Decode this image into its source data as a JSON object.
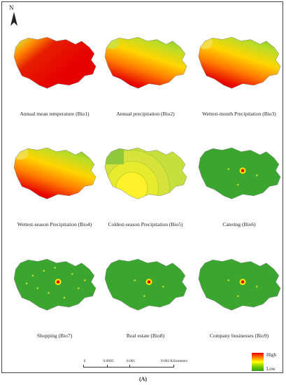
{
  "north_label": "N",
  "panels": [
    {
      "caption": "Annual mean temperature (Bio1)",
      "pattern": "temperature"
    },
    {
      "caption": "Annual precipitation (Bio2)",
      "pattern": "precip"
    },
    {
      "caption": "Wettest-month Precipitation (Bio3)",
      "pattern": "precip3"
    },
    {
      "caption": "Wettest-season Precipitation (Bio4)",
      "pattern": "precip4"
    },
    {
      "caption": "Coldest-season Precipitation (Bio5)",
      "pattern": "coldseason"
    },
    {
      "caption": "Catering (Bio6)",
      "pattern": "poi"
    },
    {
      "caption": "Shopping (Bio7)",
      "pattern": "poi-dense"
    },
    {
      "caption": "Real estate (Bio8)",
      "pattern": "poi"
    },
    {
      "caption": "Company businesses (Bio9)",
      "pattern": "poi"
    }
  ],
  "scale_bar": {
    "ticks": [
      "0",
      "0.0005",
      "0.001",
      "0.002"
    ],
    "unit": "Kilometers"
  },
  "legend": {
    "high": "High",
    "low": "Low"
  },
  "colors": {
    "high": "#e60000",
    "mid": "#ffff00",
    "low": "#2e9e1c"
  },
  "figure_label": "(A)"
}
